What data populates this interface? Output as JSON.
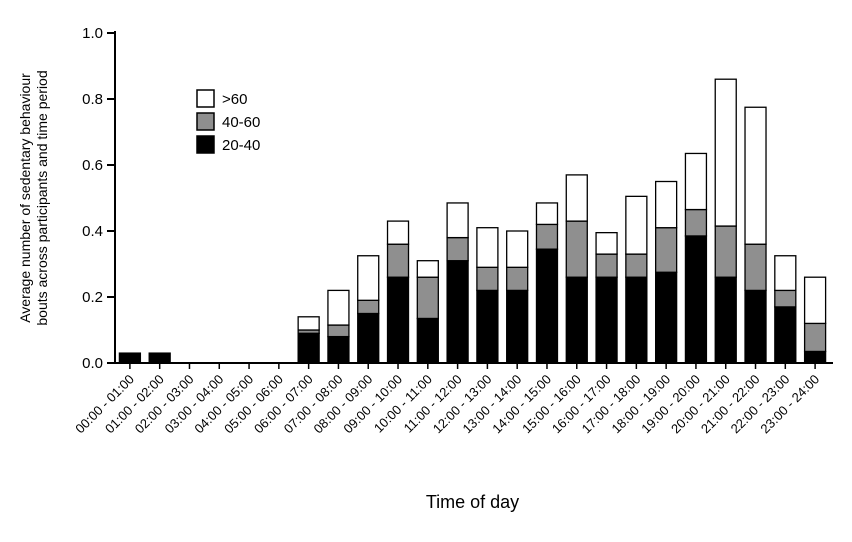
{
  "chart_data": {
    "type": "bar",
    "stacked": true,
    "title": "",
    "xlabel": "Time of day",
    "ylabel": "Average number of sedentary behaviour bouts across participants and time period",
    "ylabel_lines": [
      "Average number of sedentary behaviour",
      "bouts across participants and time period"
    ],
    "ylim": [
      0.0,
      1.0
    ],
    "yticks": [
      "0.0",
      "0.2",
      "0.4",
      "0.6",
      "0.8",
      "1.0"
    ],
    "grid": false,
    "legend_position": "top-left-inside",
    "categories": [
      "00:00 - 01:00",
      "01:00 - 02:00",
      "02:00 - 03:00",
      "03:00 - 04:00",
      "04:00 - 05:00",
      "05:00 - 06:00",
      "06:00 - 07:00",
      "07:00 - 08:00",
      "08:00 - 09:00",
      "09:00 - 10:00",
      "10:00 - 11:00",
      "11:00 - 12:00",
      "12:00 - 13:00",
      "13:00 - 14:00",
      "14:00 - 15:00",
      "15:00 - 16:00",
      "16:00 - 17:00",
      "17:00 - 18:00",
      "18:00 - 19:00",
      "19:00 - 20:00",
      "20:00 - 21:00",
      "21:00 - 22:00",
      "22:00 - 23:00",
      "23:00 - 24:00"
    ],
    "series": [
      {
        "name": "20-40",
        "key": "20-40",
        "color": "#000000",
        "values": [
          0.03,
          0.03,
          0,
          0,
          0,
          0,
          0.09,
          0.08,
          0.15,
          0.26,
          0.135,
          0.31,
          0.22,
          0.22,
          0.345,
          0.26,
          0.26,
          0.26,
          0.275,
          0.385,
          0.26,
          0.22,
          0.17,
          0.035
        ]
      },
      {
        "name": "40-60",
        "key": "40-60",
        "color": "#8f8f8f",
        "values": [
          0,
          0,
          0,
          0,
          0,
          0,
          0.01,
          0.035,
          0.04,
          0.1,
          0.125,
          0.07,
          0.07,
          0.07,
          0.075,
          0.17,
          0.07,
          0.07,
          0.135,
          0.08,
          0.155,
          0.14,
          0.05,
          0.085
        ]
      },
      {
        "name": ">60",
        "key": "gt-60",
        "color": "#ffffff",
        "values": [
          0,
          0,
          0,
          0,
          0,
          0,
          0.04,
          0.105,
          0.135,
          0.07,
          0.05,
          0.105,
          0.12,
          0.11,
          0.065,
          0.14,
          0.065,
          0.175,
          0.14,
          0.17,
          0.445,
          0.415,
          0.105,
          0.14
        ]
      }
    ],
    "totals": [
      0.03,
      0.03,
      0,
      0,
      0,
      0,
      0.14,
      0.22,
      0.325,
      0.43,
      0.31,
      0.485,
      0.41,
      0.4,
      0.485,
      0.57,
      0.395,
      0.505,
      0.55,
      0.635,
      0.86,
      0.775,
      0.325,
      0.26
    ]
  },
  "colors": {
    "axis": "#000000",
    "bar_border": "#000000",
    "background": "#ffffff"
  }
}
